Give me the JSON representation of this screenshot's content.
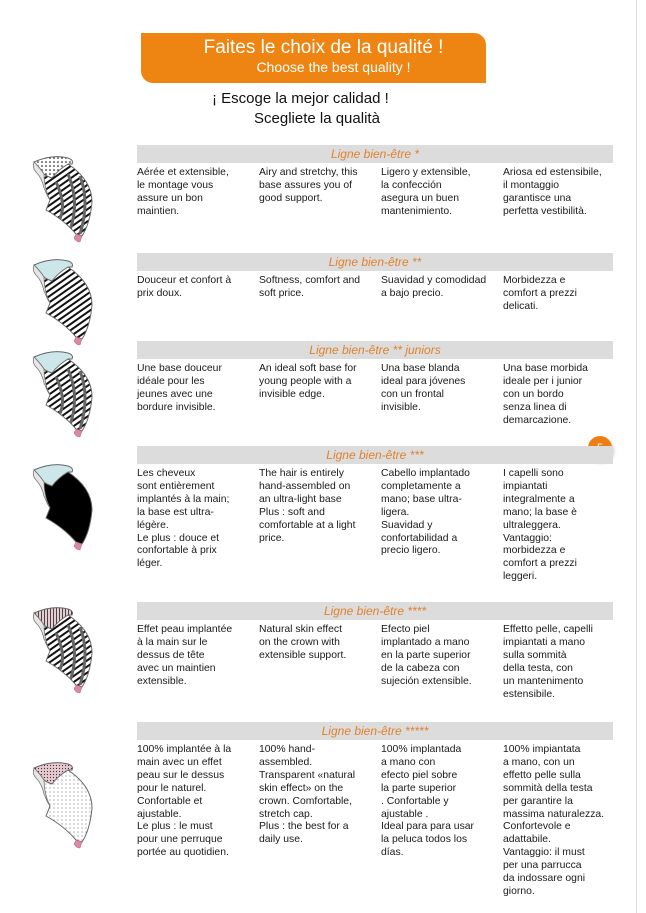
{
  "header": {
    "title_fr": "Faites le choix de la qualité !",
    "title_en": "Choose the best quality !",
    "title_es": "¡ Escoge la mejor calidad !",
    "title_it": "Scegliete la qualità"
  },
  "page_number": "5",
  "colors": {
    "accent": "#ee8512",
    "section_title": "#e0822c",
    "section_bg": "#dcdcdc"
  },
  "sections": [
    {
      "title": "Ligne bien-être *",
      "cap": {
        "crown": "dots",
        "body": "stripes",
        "bands": true
      },
      "texts": [
        "Aérée et extensible,\nle montage vous\nassure un bon\nmaintien.",
        "Airy and stretchy, this\nbase assures you of\ngood support.",
        "Ligero y extensible,\nla confección\nasegura un buen\nmantenimiento.",
        "Ariosa ed estensibile,\nil montaggio\ngarantisce una\nperfetta vestibilità."
      ]
    },
    {
      "title": "Ligne bien-être **",
      "cap": {
        "crown": "lightblue",
        "body": "stripes",
        "bands": false
      },
      "texts": [
        "Douceur et confort à\nprix doux.",
        "Softness, comfort and\nsoft price.",
        "Suavidad y comodidad\na bajo precio.",
        "Morbidezza e\ncomfort a prezzi\ndelicati."
      ]
    },
    {
      "title": "Ligne bien-être ** juniors",
      "cap": {
        "crown": "lightblue",
        "body": "stripes",
        "bands": true
      },
      "texts": [
        "Une base douceur\nidéale pour les\njeunes avec une\nbordure invisible.",
        "An ideal soft base for\nyoung people with a\ninvisible edge.",
        "Una base blanda\nideal para jóvenes\ncon un frontal\ninvisible.",
        "Una base morbida\nideale per i junior\ncon un bordo\nsenza linea di\ndemarcazione."
      ]
    },
    {
      "title": "Ligne bien-être ***",
      "cap": {
        "crown": "lightblue",
        "body": "black",
        "bands": false
      },
      "texts": [
        "Les cheveux\nsont entièrement\nimplantés à la main;\nla base est ultra-\nlégère.\nLe plus : douce et\nconfortable à prix\nléger.",
        "The hair is entirely\nhand-assembled on\nan ultra-light base\nPlus : soft and\ncomfortable at a light\nprice.",
        "Cabello implantado\ncompletamente a\nmano; base ultra-\nligera.\nSuavidad y\nconfortabilidad a\nprecio ligero.",
        "I capelli sono\nimpiantati\nintegralmente a\nmano; la base è\nultraleggera.\nVantaggio:\nmorbidezza e\ncomfort a prezzi\nleggeri."
      ]
    },
    {
      "title": "Ligne bien-être ****",
      "cap": {
        "crown": "pinklines",
        "body": "stripes",
        "bands": true
      },
      "texts": [
        "Effet peau implantée\nà la main sur le\ndessus de tête\navec un maintien\nextensible.",
        "Natural skin effect\non the crown with\nextensible support.",
        "Efecto piel\nimplantado a mano\nen la parte superior\nde la cabeza con\nsujeción extensible.",
        "Effetto pelle, capelli\nimpiantati a mano\nsulla sommità\ndella testa, con\nun mantenimento\nestensibile."
      ]
    },
    {
      "title": "Ligne bien-être *****",
      "cap": {
        "crown": "pinkdots",
        "body": "lightdots",
        "bands": false
      },
      "texts": [
        "100% implantée à la\nmain avec un effet\npeau sur le dessus\npour le naturel.\nConfortable et\najustable.\nLe plus : le must\npour une perruque\nportée au quotidien.",
        "100% hand-\nassembled.\nTransparent «natural\nskin effect» on the\ncrown. Comfortable,\nstretch cap.\nPlus : the best for a\ndaily use.",
        "100% implantada\na mano con\nefecto piel sobre\nla parte superior\n. Confortable y\najustable .\nIdeal para para  usar\nla peluca todos los\ndías.",
        "100% impiantata\na mano, con un\neffetto pelle sulla\nsommità della testa\nper garantire la\nmassima naturalezza.\nConfortevole e\nadattabile.\nVantaggio: il must\nper una parrucca\nda indossare ogni\ngiorno."
      ]
    }
  ]
}
